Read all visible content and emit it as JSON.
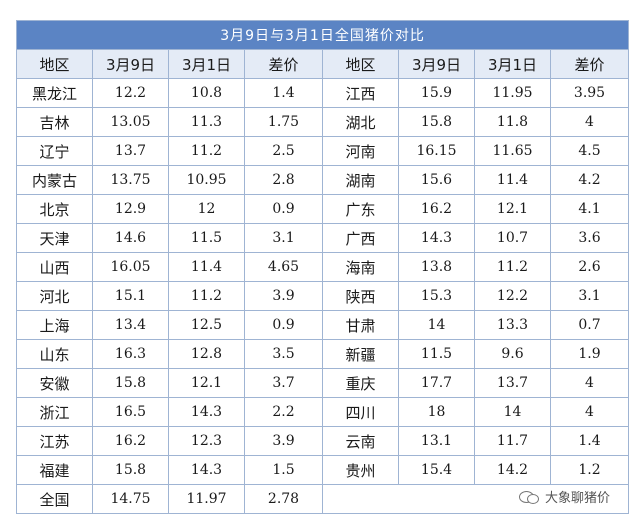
{
  "table": {
    "title": "3月9日与3月1日全国猪价对比",
    "headers": [
      "地区",
      "3月9日",
      "3月1日",
      "差价",
      "地区",
      "3月9日",
      "3月1日",
      "差价"
    ],
    "rows": [
      [
        [
          "黑龙江",
          "12.2",
          "10.8",
          "1.4"
        ],
        [
          "江西",
          "15.9",
          "11.95",
          "3.95"
        ]
      ],
      [
        [
          "吉林",
          "13.05",
          "11.3",
          "1.75"
        ],
        [
          "湖北",
          "15.8",
          "11.8",
          "4"
        ]
      ],
      [
        [
          "辽宁",
          "13.7",
          "11.2",
          "2.5"
        ],
        [
          "河南",
          "16.15",
          "11.65",
          "4.5"
        ]
      ],
      [
        [
          "内蒙古",
          "13.75",
          "10.95",
          "2.8"
        ],
        [
          "湖南",
          "15.6",
          "11.4",
          "4.2"
        ]
      ],
      [
        [
          "北京",
          "12.9",
          "12",
          "0.9"
        ],
        [
          "广东",
          "16.2",
          "12.1",
          "4.1"
        ]
      ],
      [
        [
          "天津",
          "14.6",
          "11.5",
          "3.1"
        ],
        [
          "广西",
          "14.3",
          "10.7",
          "3.6"
        ]
      ],
      [
        [
          "山西",
          "16.05",
          "11.4",
          "4.65"
        ],
        [
          "海南",
          "13.8",
          "11.2",
          "2.6"
        ]
      ],
      [
        [
          "河北",
          "15.1",
          "11.2",
          "3.9"
        ],
        [
          "陕西",
          "15.3",
          "12.2",
          "3.1"
        ]
      ],
      [
        [
          "上海",
          "13.4",
          "12.5",
          "0.9"
        ],
        [
          "甘肃",
          "14",
          "13.3",
          "0.7"
        ]
      ],
      [
        [
          "山东",
          "16.3",
          "12.8",
          "3.5"
        ],
        [
          "新疆",
          "11.5",
          "9.6",
          "1.9"
        ]
      ],
      [
        [
          "安徽",
          "15.8",
          "12.1",
          "3.7"
        ],
        [
          "重庆",
          "17.7",
          "13.7",
          "4"
        ]
      ],
      [
        [
          "浙江",
          "16.5",
          "14.3",
          "2.2"
        ],
        [
          "四川",
          "18",
          "14",
          "4"
        ]
      ],
      [
        [
          "江苏",
          "16.2",
          "12.3",
          "3.9"
        ],
        [
          "云南",
          "13.1",
          "11.7",
          "1.4"
        ]
      ],
      [
        [
          "福建",
          "15.8",
          "14.3",
          "1.5"
        ],
        [
          "贵州",
          "15.4",
          "14.2",
          "1.2"
        ]
      ]
    ],
    "total": [
      "全国",
      "14.75",
      "11.97",
      "2.78"
    ]
  },
  "watermark": {
    "icon": "wechat-icon",
    "text": "大象聊猪价"
  },
  "colors": {
    "title_bg": "#5b84c4",
    "header_bg": "#e4ebf6",
    "border": "#9fb4d3"
  }
}
